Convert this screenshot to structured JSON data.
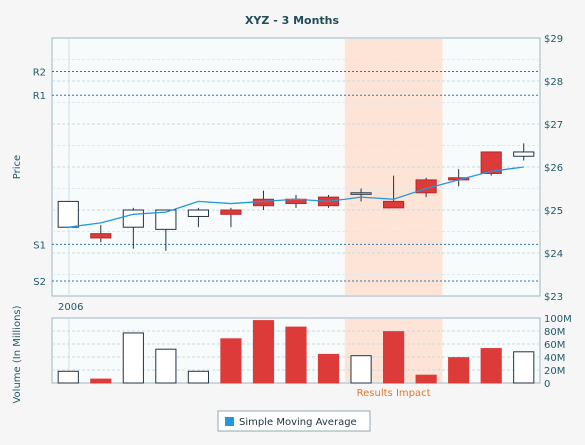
{
  "chart_data": [
    {
      "type": "candlestick",
      "title": "XYZ - 3 Months",
      "ylabel": "Price",
      "ylim": [
        23,
        29
      ],
      "yticks": [
        "$23",
        "$24",
        "$25",
        "$26",
        "$27",
        "$28",
        "$29"
      ],
      "x_label": "2006",
      "reference_lines": [
        {
          "label": "R2",
          "value": 28.22
        },
        {
          "label": "R1",
          "value": 27.67
        },
        {
          "label": "S1",
          "value": 24.2
        },
        {
          "label": "S2",
          "value": 23.35
        }
      ],
      "highlight_band": {
        "label": "Results Impact",
        "from_index": 9,
        "to_index": 11
      },
      "series": [
        {
          "name": "price",
          "ohlc": [
            {
              "o": 24.6,
              "h": 25.2,
              "l": 24.6,
              "c": 25.2
            },
            {
              "o": 24.45,
              "h": 24.65,
              "l": 24.25,
              "c": 24.35
            },
            {
              "o": 24.6,
              "h": 25.05,
              "l": 24.1,
              "c": 25.0
            },
            {
              "o": 24.55,
              "h": 25.0,
              "l": 24.05,
              "c": 25.0
            },
            {
              "o": 24.85,
              "h": 25.05,
              "l": 24.6,
              "c": 25.0
            },
            {
              "o": 25.0,
              "h": 25.05,
              "l": 24.6,
              "c": 24.9
            },
            {
              "o": 25.25,
              "h": 25.45,
              "l": 25.0,
              "c": 25.1
            },
            {
              "o": 25.25,
              "h": 25.35,
              "l": 25.05,
              "c": 25.15
            },
            {
              "o": 25.3,
              "h": 25.35,
              "l": 25.05,
              "c": 25.1
            },
            {
              "o": 25.4,
              "h": 25.5,
              "l": 25.2,
              "c": 25.4
            },
            {
              "o": 25.2,
              "h": 25.8,
              "l": 25.05,
              "c": 25.05
            },
            {
              "o": 25.7,
              "h": 25.75,
              "l": 25.3,
              "c": 25.4
            },
            {
              "o": 25.75,
              "h": 25.95,
              "l": 25.55,
              "c": 25.7
            },
            {
              "o": 26.35,
              "h": 26.35,
              "l": 25.8,
              "c": 25.85
            },
            {
              "o": 26.25,
              "h": 26.55,
              "l": 26.15,
              "c": 26.35
            }
          ]
        },
        {
          "name": "Simple Moving Average",
          "values": [
            24.6,
            24.7,
            24.9,
            24.95,
            25.2,
            25.15,
            25.2,
            25.25,
            25.2,
            25.3,
            25.25,
            25.5,
            25.7,
            25.9,
            26.0
          ]
        }
      ]
    },
    {
      "type": "bar",
      "ylabel": "Volume (In Millions)",
      "ylim": [
        0,
        100
      ],
      "yticks": [
        "0",
        "20M",
        "40M",
        "60M",
        "80M",
        "100M"
      ],
      "highlight_band": {
        "label": "Results Impact",
        "from_index": 9,
        "to_index": 11
      },
      "series": [
        {
          "values": [
            18,
            6,
            77,
            52,
            18,
            68,
            96,
            86,
            44,
            42,
            79,
            12,
            39,
            53,
            48
          ]
        }
      ]
    }
  ],
  "legend": {
    "items": [
      {
        "label": "Simple Moving Average",
        "color": "#2299dd"
      }
    ]
  },
  "colors": {
    "bull": "#ffffff",
    "bear": "#dd3a3a",
    "sma": "#2299dd",
    "band": "#fde4d6",
    "ref": "#2a7ab8"
  }
}
